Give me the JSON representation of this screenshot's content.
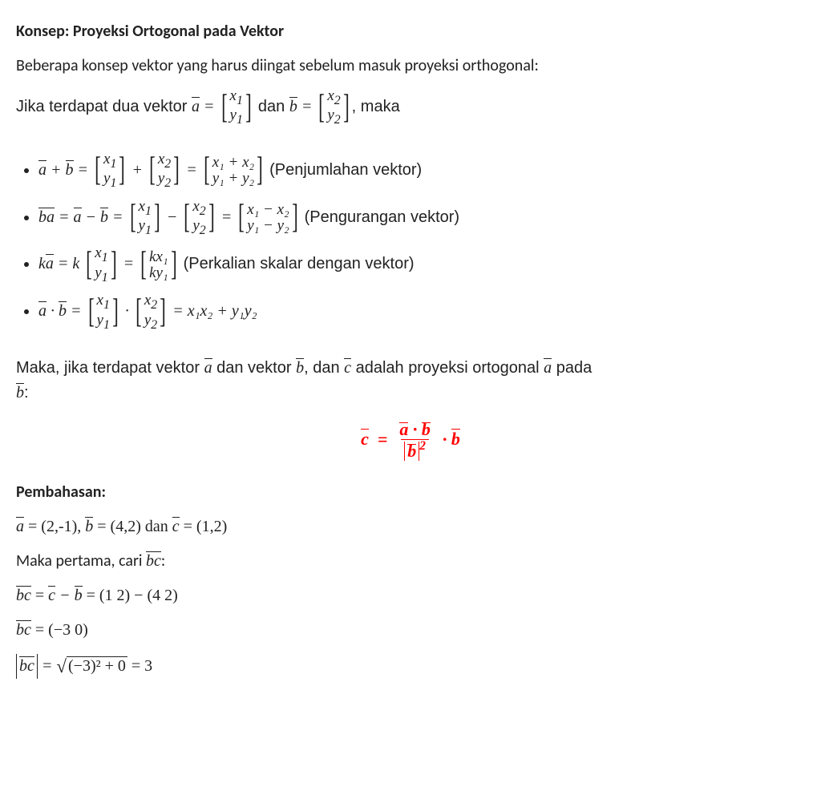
{
  "title": "Konsep: Proyeksi Ortogonal pada Vektor",
  "intro": "Beberapa konsep vektor yang harus diingat sebelum masuk proyeksi orthogonal:",
  "lead_prefix": "Jika terdapat dua vektor ",
  "lead_and": " dan ",
  "lead_suffix": ", maka",
  "bullet1_note": " (Penjumlahan vektor)",
  "bullet2_note": " (Pengurangan vektor)",
  "bullet3_note": " (Perkalian skalar dengan vektor)",
  "maka_line_1": "Maka, jika terdapat vektor ",
  "maka_line_2": " dan vektor ",
  "maka_line_3": ", dan ",
  "maka_line_4": " adalah proyeksi ortogonal ",
  "maka_line_5": " pada ",
  "pembahasan_heading": "Pembahasan:",
  "given_prefix": " = (2,-1), ",
  "given_mid": " = (4,2) dan ",
  "given_end": " = (1,2)",
  "step1": "Maka pertama, cari ",
  "bc_calc1_eq": " = ",
  "bc_calc1_rhs1": " = (1   2) − (4   2)",
  "bc_calc2": " = (−3   0)",
  "bc_abs_rhs_inner": "(−3)² + 0",
  "bc_abs_eq3": " = 3",
  "heading_color": "#222222",
  "formula_color": "#ff0000",
  "body_color": "#222222",
  "background_color": "#ffffff",
  "vectors": {
    "a_top": "x",
    "a_sub": "1",
    "a_bot": "y",
    "a_bsub": "1",
    "b_top": "x",
    "b_sub": "2",
    "b_bot": "y",
    "b_bsub": "2",
    "sum_top": "x₁ + x₂",
    "sum_bot": "y₁ + y₂",
    "diff_top": "x₁ − x₂",
    "diff_bot": "y₁ − y₂",
    "k_top": "kx₁",
    "k_bot": "ky₁",
    "dot_rhs": "x₁x₂ + y₁y₂"
  }
}
